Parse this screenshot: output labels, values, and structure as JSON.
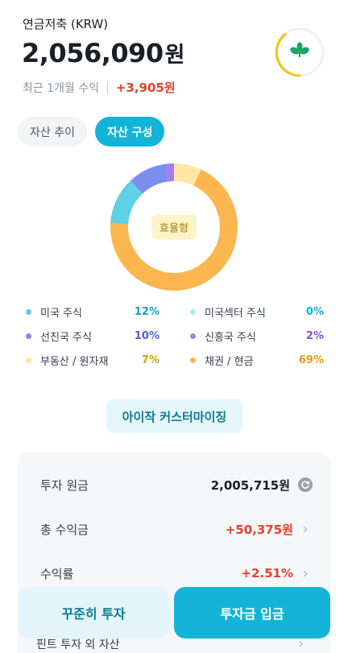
{
  "header": {
    "account_label": "연금저축 (KRW)",
    "total_amount": "2,056,090",
    "amount_unit": "원",
    "return_label": "최근 1개월 수익",
    "separator": "|",
    "return_value": "+3,905원"
  },
  "badge": {
    "icon": "leaf-icon",
    "ring_color": "#f5c400",
    "accent_color": "#1fa463"
  },
  "tabs": [
    {
      "label": "자산 추이",
      "selected": false
    },
    {
      "label": "자산 구성",
      "selected": true
    }
  ],
  "chart_data": {
    "type": "pie",
    "center_label": "효율형",
    "slices": [
      {
        "name": "미국 주식",
        "value": 12,
        "color": "#5fd0e6"
      },
      {
        "name": "미국섹터 주식",
        "value": 0,
        "color": "#b7e6f0"
      },
      {
        "name": "선진국 주식",
        "value": 10,
        "color": "#7b8ff0"
      },
      {
        "name": "신흥국 주식",
        "value": 2,
        "color": "#a77cf2"
      },
      {
        "name": "부동산 / 원자재",
        "value": 7,
        "color": "#fde7a3"
      },
      {
        "name": "채권 / 현금",
        "value": 69,
        "color": "#fbb64f"
      }
    ]
  },
  "legend": [
    {
      "name": "미국 주식",
      "pct": "12%",
      "dot": "#5fd0e6",
      "pct_color": "#14a3c7"
    },
    {
      "name": "미국섹터 주식",
      "pct": "0%",
      "dot": "#b7e6f0",
      "pct_color": "#14b4d9"
    },
    {
      "name": "선진국 주식",
      "pct": "10%",
      "dot": "#7b8ff0",
      "pct_color": "#4b5fd6"
    },
    {
      "name": "신흥국 주식",
      "pct": "2%",
      "dot": "#a77cf2",
      "pct_color": "#8a4fd9"
    },
    {
      "name": "부동산 / 원자재",
      "pct": "7%",
      "dot": "#fde7a3",
      "pct_color": "#c9a210"
    },
    {
      "name": "채권 / 현금",
      "pct": "69%",
      "dot": "#fbb64f",
      "pct_color": "#e59b14"
    }
  ],
  "custom_button": "아이작 커스터마이징",
  "summary": {
    "principal_label": "투자 원금",
    "principal_value": "2,005,715원",
    "total_return_label": "총 수익금",
    "total_return_value": "+50,375원",
    "rate_label": "수익률",
    "rate_value": "+2.51%",
    "other_assets_label": "핀트 투자 외 자산"
  },
  "bottom": {
    "steady_label": "꾸준히 투자",
    "deposit_label": "투자금 입금"
  }
}
